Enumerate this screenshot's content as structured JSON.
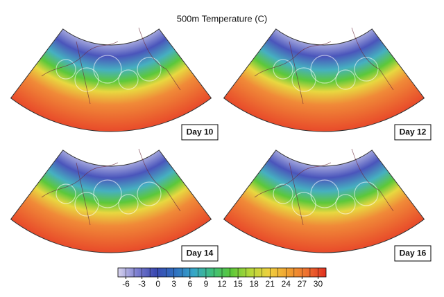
{
  "title": "500m Temperature (C)",
  "panels": [
    {
      "label": "Day 10"
    },
    {
      "label": "Day 12"
    },
    {
      "label": "Day 14"
    },
    {
      "label": "Day 16"
    }
  ],
  "colorbar": {
    "lim": [
      -7.5,
      31.5
    ],
    "ticks": [
      -6,
      -3,
      0,
      3,
      6,
      9,
      12,
      15,
      18,
      21,
      24,
      27,
      30
    ],
    "colors": [
      "#d8d4ee",
      "#7d7fd0",
      "#3a48b0",
      "#2f6fc0",
      "#36a6c8",
      "#3fbf7a",
      "#5cc83a",
      "#b6d83a",
      "#f0d040",
      "#f0a030",
      "#ee7030",
      "#e03020"
    ]
  }
}
